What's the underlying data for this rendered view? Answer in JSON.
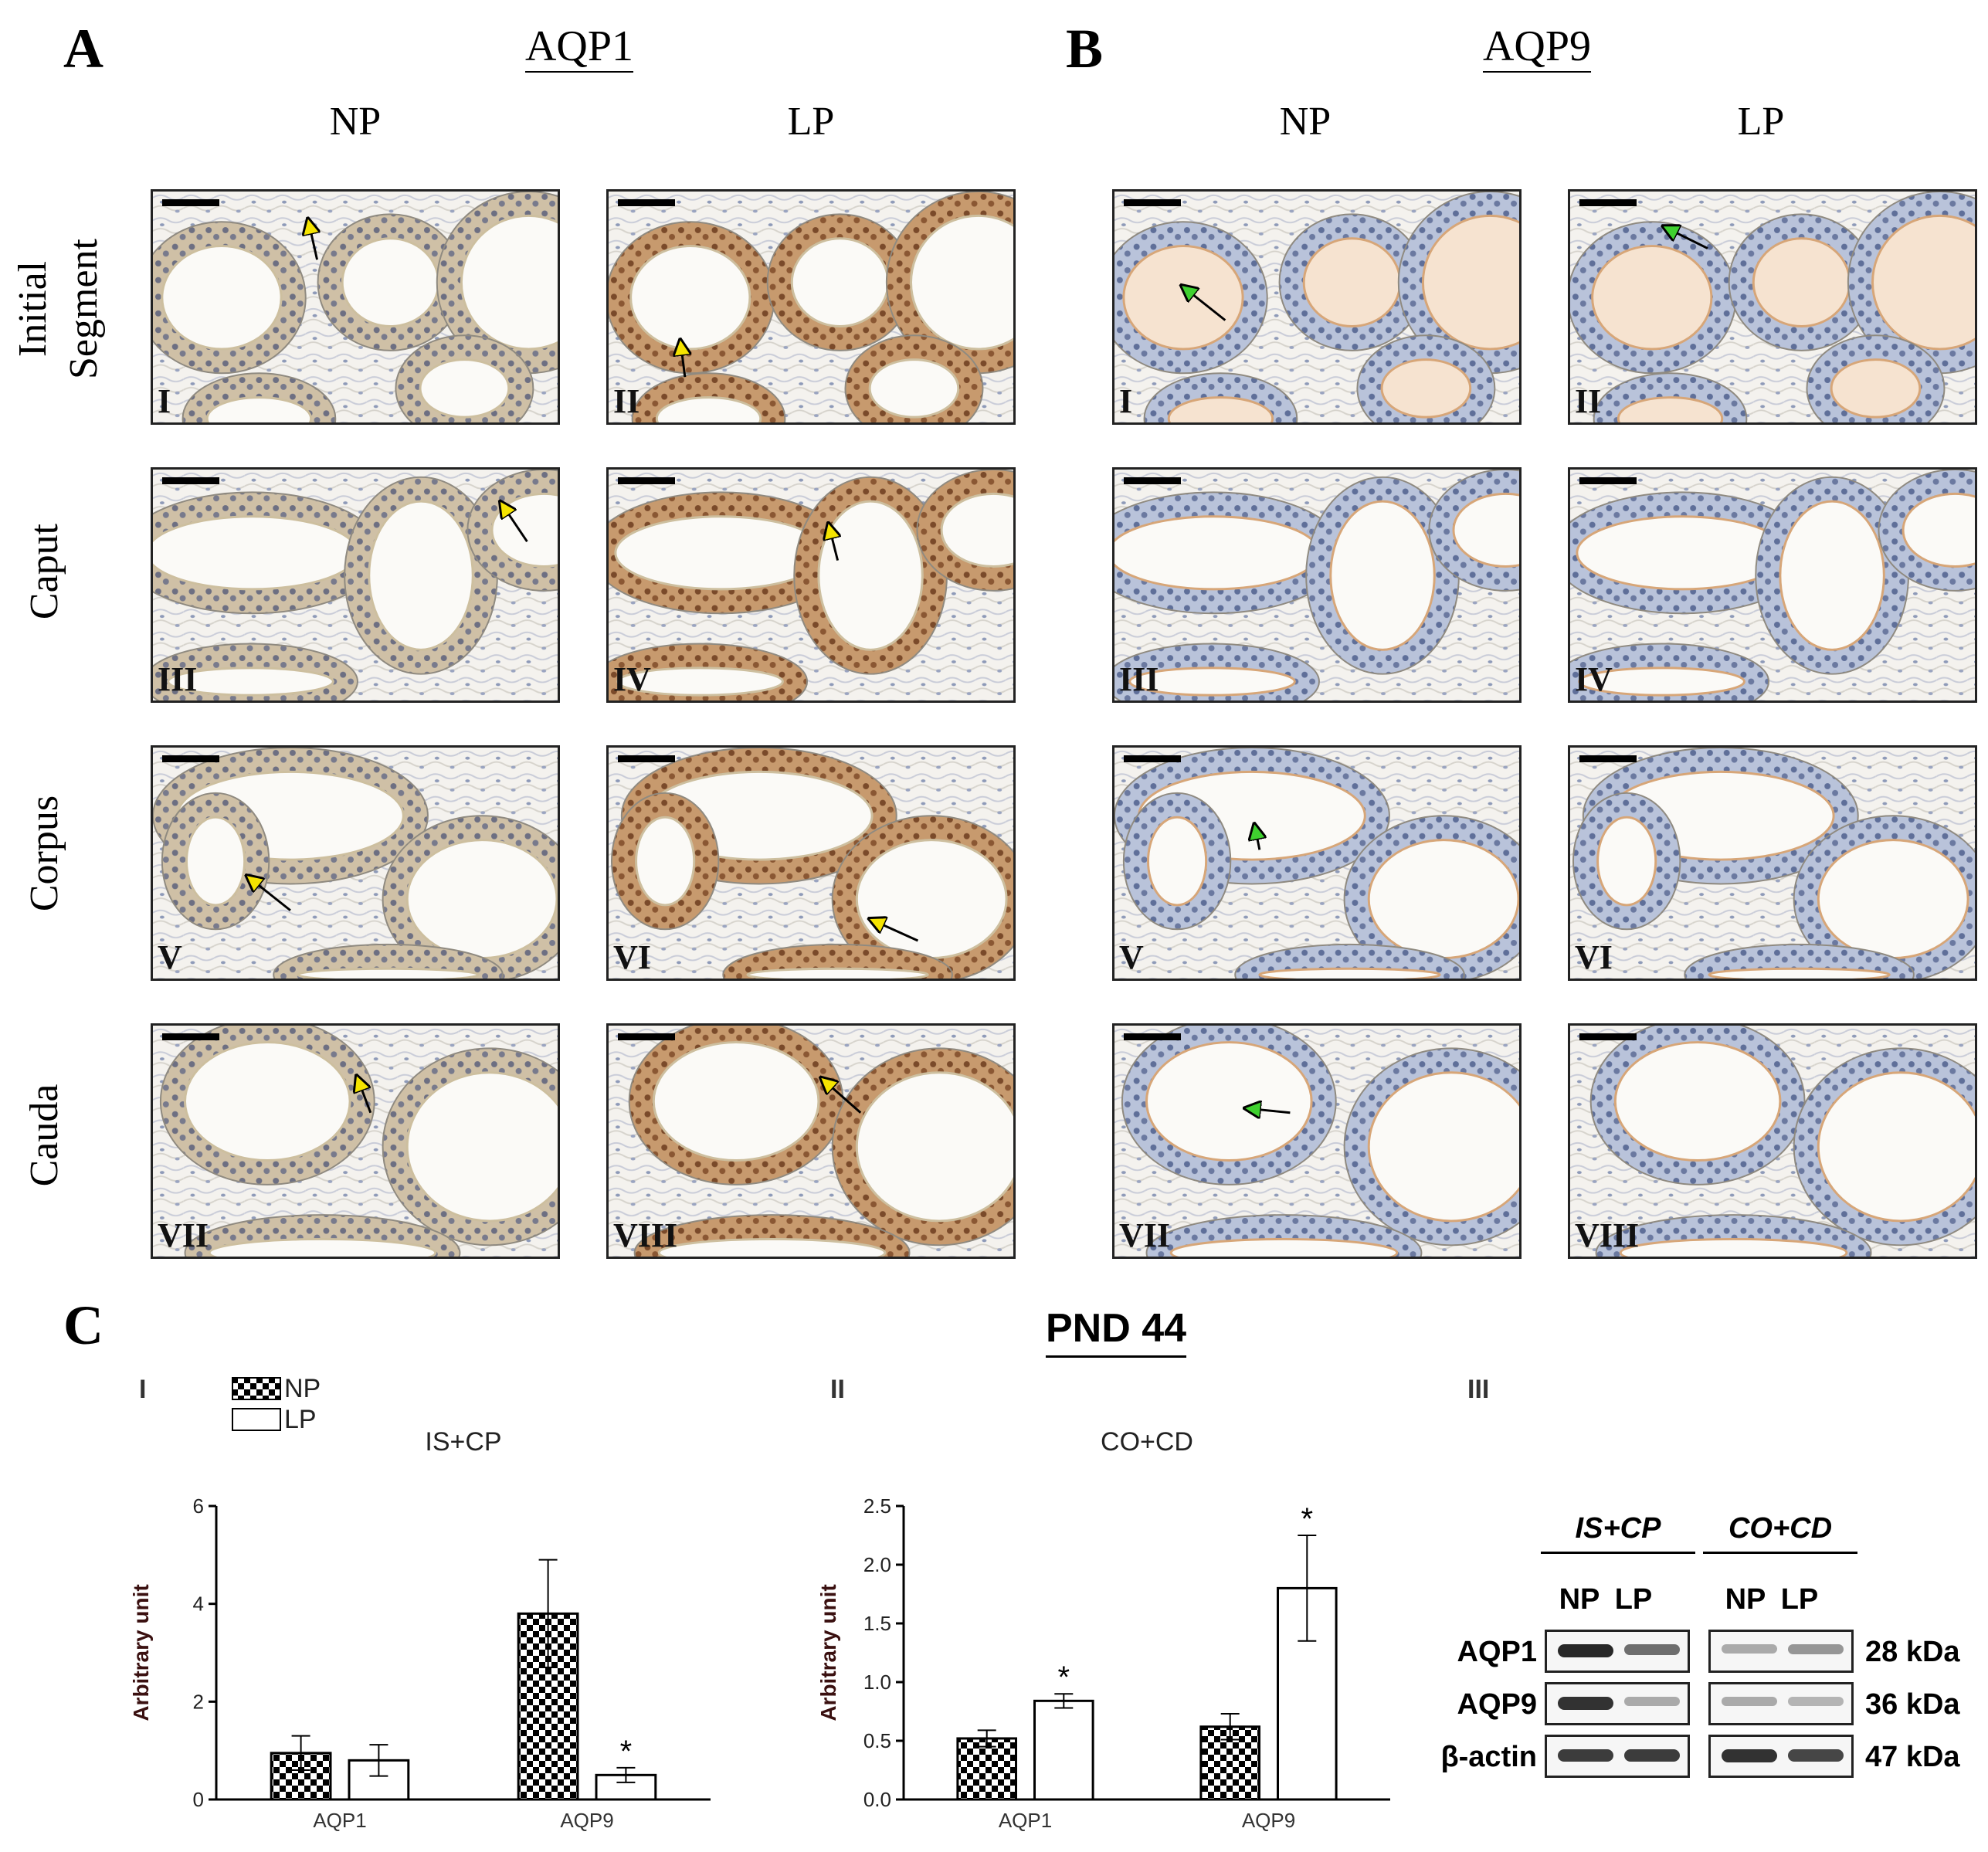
{
  "panel_a": {
    "letter": "A",
    "title": "AQP1"
  },
  "panel_b": {
    "letter": "B",
    "title": "AQP9"
  },
  "columns": {
    "np": "NP",
    "lp": "LP"
  },
  "rows": {
    "initial_segment": [
      "Initial",
      "Segment"
    ],
    "caput": "Caput",
    "corpus": "Corpus",
    "cauda": "Cauda"
  },
  "micrograph_labels": {
    "a": [
      "I",
      "II",
      "III",
      "IV",
      "V",
      "VI",
      "VII",
      "VIII"
    ],
    "b": [
      "I",
      "II",
      "III",
      "IV",
      "V",
      "VI",
      "VII",
      "VIII"
    ]
  },
  "panel_c": {
    "letter": "C",
    "title": "PND 44",
    "sub_i": "I",
    "sub_ii": "II",
    "sub_iii": "III",
    "legend": {
      "np": "NP",
      "lp": "LP"
    }
  },
  "chart_data": [
    {
      "type": "bar",
      "title": "IS+CP",
      "ylabel": "Arbitrary unit",
      "xlabel": "",
      "categories": [
        "AQP1",
        "AQP9"
      ],
      "ylim": [
        0,
        6
      ],
      "yticks": [
        0,
        2,
        4,
        6
      ],
      "series": [
        {
          "name": "NP",
          "values": [
            0.95,
            3.8
          ],
          "errors": [
            0.35,
            1.1
          ],
          "pattern": "checkerboard"
        },
        {
          "name": "LP",
          "values": [
            0.8,
            0.5
          ],
          "errors": [
            0.32,
            0.15
          ],
          "pattern": "white"
        }
      ],
      "significance": [
        [
          "",
          ""
        ],
        [
          "",
          "*"
        ]
      ]
    },
    {
      "type": "bar",
      "title": "CO+CD",
      "ylabel": "Arbitrary unit",
      "xlabel": "",
      "categories": [
        "AQP1",
        "AQP9"
      ],
      "ylim": [
        0,
        2.5
      ],
      "yticks": [
        0.0,
        0.5,
        1.0,
        1.5,
        2.0,
        2.5
      ],
      "series": [
        {
          "name": "NP",
          "values": [
            0.52,
            0.62
          ],
          "errors": [
            0.07,
            0.11
          ],
          "pattern": "checkerboard"
        },
        {
          "name": "LP",
          "values": [
            0.84,
            1.8
          ],
          "errors": [
            0.06,
            0.45
          ],
          "pattern": "white"
        }
      ],
      "significance": [
        [
          "",
          "*"
        ],
        [
          "",
          "*"
        ]
      ]
    }
  ],
  "western_blot": {
    "groups": [
      "IS+CP",
      "CO+CD"
    ],
    "lanes": [
      "NP",
      "LP",
      "NP",
      "LP"
    ],
    "rows": [
      {
        "protein": "AQP1",
        "size": "28 kDa",
        "intensity": [
          0.9,
          0.55,
          0.25,
          0.35
        ]
      },
      {
        "protein": "AQP9",
        "size": "36 kDa",
        "intensity": [
          0.85,
          0.25,
          0.25,
          0.2
        ]
      },
      {
        "protein": "β-actin",
        "size": "47 kDa",
        "intensity": [
          0.8,
          0.8,
          0.85,
          0.75
        ]
      }
    ]
  }
}
